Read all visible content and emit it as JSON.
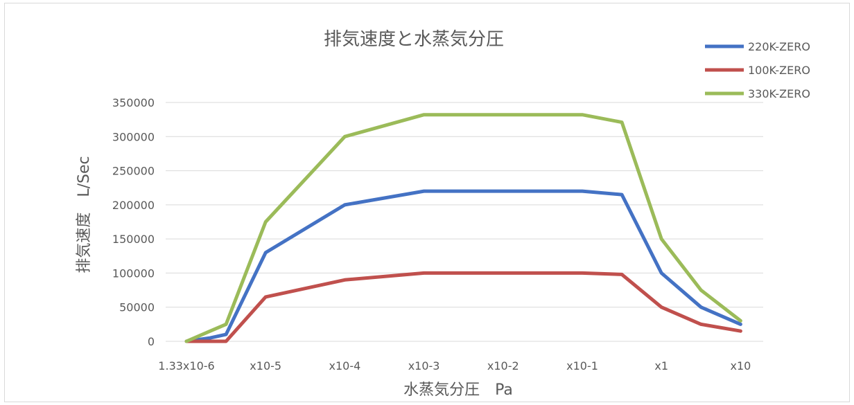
{
  "chart_data": {
    "type": "line",
    "title": "排気速度と水蒸気分圧",
    "xlabel": "水蒸気分圧　Pa",
    "ylabel": "排気速度　L/Sec",
    "ylim": [
      0,
      350000
    ],
    "yticks": [
      "0",
      "50000",
      "100000",
      "150000",
      "200000",
      "250000",
      "300000",
      "350000"
    ],
    "xtick_labels": [
      "1.33x10-6",
      "x10-5",
      "x10-4",
      "x10-3",
      "x10-2",
      "x10-1",
      "x1",
      "x10"
    ],
    "x": [
      0,
      0.3,
      0.5,
      1,
      2,
      3,
      4,
      5,
      5.5,
      6,
      6.5,
      7
    ],
    "grid": true,
    "legend": "top-right",
    "series": [
      {
        "name": "220K-ZERO",
        "color": "#4472c4",
        "values": [
          0,
          5000,
          10000,
          130000,
          200000,
          220000,
          220000,
          220000,
          215000,
          100000,
          50000,
          25000
        ]
      },
      {
        "name": "100K-ZERO",
        "color": "#c0504d",
        "values": [
          0,
          0,
          0,
          65000,
          90000,
          100000,
          100000,
          100000,
          98000,
          50000,
          25000,
          15000
        ]
      },
      {
        "name": "330K-ZERO",
        "color": "#9bbb59",
        "values": [
          0,
          15000,
          25000,
          175000,
          300000,
          332000,
          332000,
          332000,
          321000,
          150000,
          75000,
          30000
        ]
      }
    ]
  }
}
